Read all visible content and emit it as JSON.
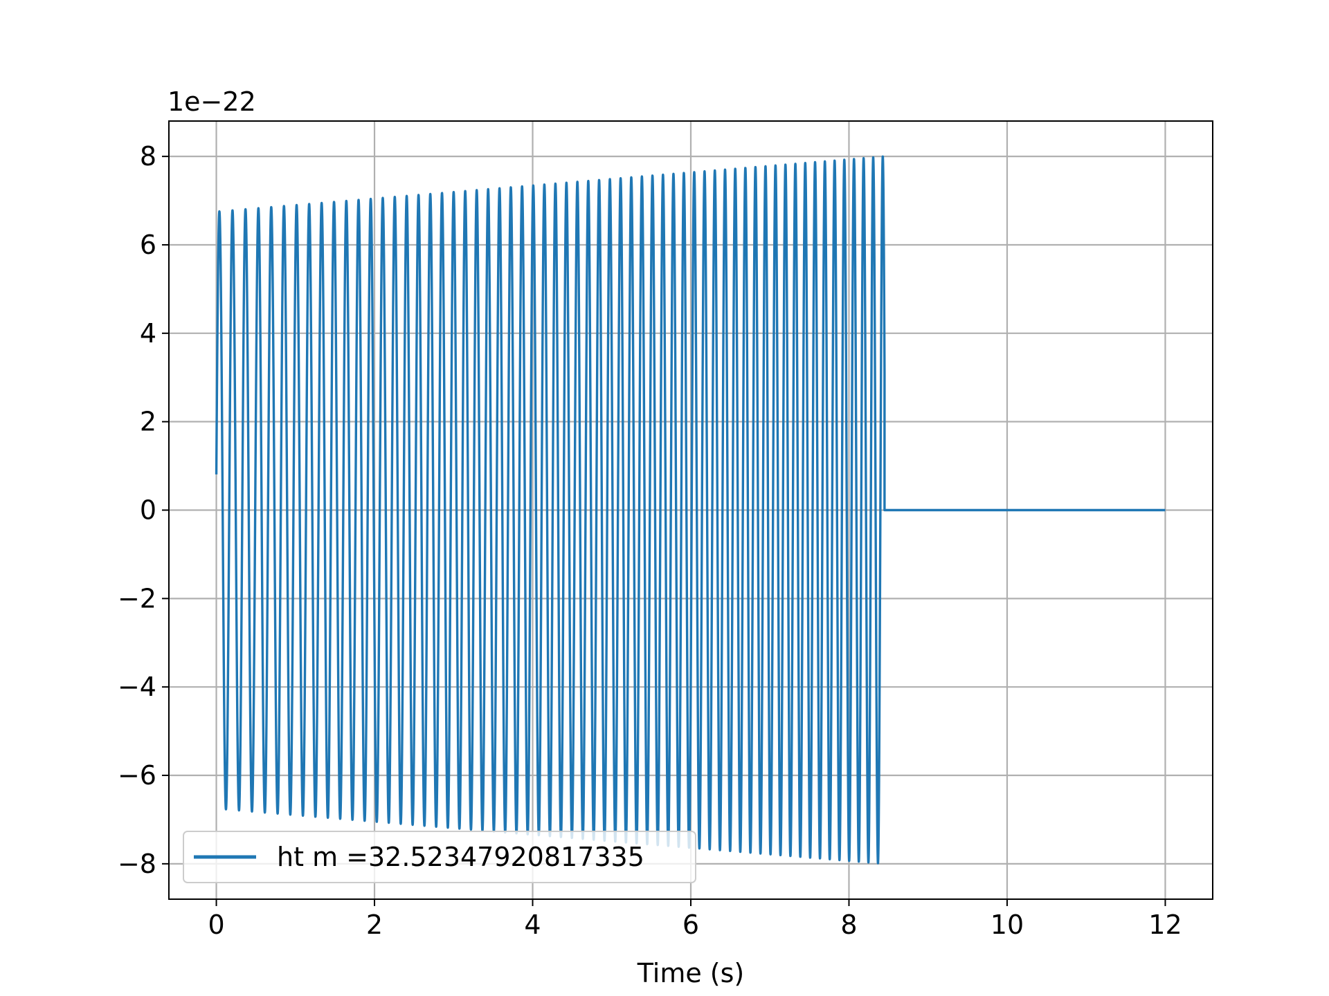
{
  "chart_data": {
    "type": "line",
    "title": "",
    "xlabel": "Time (s)",
    "ylabel": "",
    "offset_label": "1e−22",
    "xlim": [
      -0.6,
      12.6
    ],
    "ylim": [
      -8.8,
      8.8
    ],
    "xticks": [
      0,
      2,
      4,
      6,
      8,
      10,
      12
    ],
    "xtick_labels": [
      "0",
      "2",
      "4",
      "6",
      "8",
      "10",
      "12"
    ],
    "yticks": [
      -8,
      -6,
      -4,
      -2,
      0,
      2,
      4,
      6,
      8
    ],
    "ytick_labels": [
      "−8",
      "−6",
      "−4",
      "−2",
      "0",
      "2",
      "4",
      "6",
      "8"
    ],
    "grid": true,
    "legend": {
      "placement": "lower-left"
    },
    "series": [
      {
        "name": "ht m =32.52347920817335",
        "color": "#1f77b4",
        "signal": {
          "amplitude_start": 6.75,
          "amplitude_end": 8.0,
          "freq_start_hz": 6.0,
          "freq_end_hz": 8.3,
          "t_start": 0.0,
          "t_merge": 8.45,
          "t_end": 12.0,
          "value_after_merge": 0.0
        }
      }
    ]
  }
}
